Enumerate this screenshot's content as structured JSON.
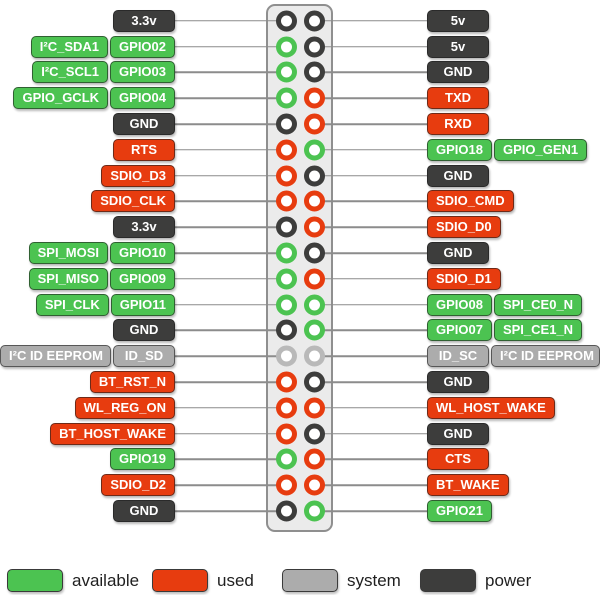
{
  "colors": {
    "available": "#4cc351",
    "used": "#e73c0f",
    "system": "#acacac",
    "pin_system": "#b9b9b9",
    "power": "#3d3d3c",
    "line": "#8c8c8c",
    "header_bg": "#ebebeb",
    "header_border": "#8f8f8f"
  },
  "legend": [
    {
      "label": "available",
      "type": "available"
    },
    {
      "label": "used",
      "type": "used"
    },
    {
      "label": "system",
      "type": "system"
    },
    {
      "label": "power",
      "type": "power"
    }
  ],
  "rows": [
    {
      "left": [
        {
          "text": "3.3v",
          "type": "power"
        }
      ],
      "right": [
        {
          "text": "5v",
          "type": "power"
        }
      ]
    },
    {
      "left": [
        {
          "text": "I²C_SDA1",
          "type": "available"
        },
        {
          "text": "GPIO02",
          "type": "available"
        }
      ],
      "right": [
        {
          "text": "5v",
          "type": "power"
        }
      ]
    },
    {
      "left": [
        {
          "text": "I²C_SCL1",
          "type": "available"
        },
        {
          "text": "GPIO03",
          "type": "available"
        }
      ],
      "right": [
        {
          "text": "GND",
          "type": "power"
        }
      ]
    },
    {
      "left": [
        {
          "text": "GPIO_GCLK",
          "type": "available"
        },
        {
          "text": "GPIO04",
          "type": "available"
        }
      ],
      "right": [
        {
          "text": "TXD",
          "type": "used"
        }
      ]
    },
    {
      "left": [
        {
          "text": "GND",
          "type": "power"
        }
      ],
      "right": [
        {
          "text": "RXD",
          "type": "used"
        }
      ]
    },
    {
      "left": [
        {
          "text": "RTS",
          "type": "used"
        }
      ],
      "right": [
        {
          "text": "GPIO18",
          "type": "available"
        },
        {
          "text": "GPIO_GEN1",
          "type": "available"
        }
      ]
    },
    {
      "left": [
        {
          "text": "SDIO_D3",
          "type": "used"
        }
      ],
      "right": [
        {
          "text": "GND",
          "type": "power"
        }
      ]
    },
    {
      "left": [
        {
          "text": "SDIO_CLK",
          "type": "used"
        }
      ],
      "right": [
        {
          "text": "SDIO_CMD",
          "type": "used"
        }
      ]
    },
    {
      "left": [
        {
          "text": "3.3v",
          "type": "power"
        }
      ],
      "right": [
        {
          "text": "SDIO_D0",
          "type": "used"
        }
      ]
    },
    {
      "left": [
        {
          "text": "SPI_MOSI",
          "type": "available"
        },
        {
          "text": "GPIO10",
          "type": "available"
        }
      ],
      "right": [
        {
          "text": "GND",
          "type": "power"
        }
      ]
    },
    {
      "left": [
        {
          "text": "SPI_MISO",
          "type": "available"
        },
        {
          "text": "GPIO09",
          "type": "available"
        }
      ],
      "right": [
        {
          "text": "SDIO_D1",
          "type": "used"
        }
      ]
    },
    {
      "left": [
        {
          "text": "SPI_CLK",
          "type": "available"
        },
        {
          "text": "GPIO11",
          "type": "available"
        }
      ],
      "right": [
        {
          "text": "GPIO08",
          "type": "available"
        },
        {
          "text": "SPI_CE0_N",
          "type": "available"
        }
      ]
    },
    {
      "left": [
        {
          "text": "GND",
          "type": "power"
        }
      ],
      "right": [
        {
          "text": "GPIO07",
          "type": "available"
        },
        {
          "text": "SPI_CE1_N",
          "type": "available"
        }
      ]
    },
    {
      "left": [
        {
          "text": "I²C ID EEPROM",
          "type": "system"
        },
        {
          "text": "ID_SD",
          "type": "system"
        }
      ],
      "right": [
        {
          "text": "ID_SC",
          "type": "system"
        },
        {
          "text": "I²C ID EEPROM",
          "type": "system"
        }
      ]
    },
    {
      "left": [
        {
          "text": "BT_RST_N",
          "type": "used"
        }
      ],
      "right": [
        {
          "text": "GND",
          "type": "power"
        }
      ]
    },
    {
      "left": [
        {
          "text": "WL_REG_ON",
          "type": "used"
        }
      ],
      "right": [
        {
          "text": "WL_HOST_WAKE",
          "type": "used"
        }
      ]
    },
    {
      "left": [
        {
          "text": "BT_HOST_WAKE",
          "type": "used"
        }
      ],
      "right": [
        {
          "text": "GND",
          "type": "power"
        }
      ]
    },
    {
      "left": [
        {
          "text": "GPIO19",
          "type": "available"
        }
      ],
      "right": [
        {
          "text": "CTS",
          "type": "used"
        }
      ]
    },
    {
      "left": [
        {
          "text": "SDIO_D2",
          "type": "used"
        }
      ],
      "right": [
        {
          "text": "BT_WAKE",
          "type": "used"
        }
      ]
    },
    {
      "left": [
        {
          "text": "GND",
          "type": "power"
        }
      ],
      "right": [
        {
          "text": "GPIO21",
          "type": "available"
        }
      ]
    }
  ]
}
